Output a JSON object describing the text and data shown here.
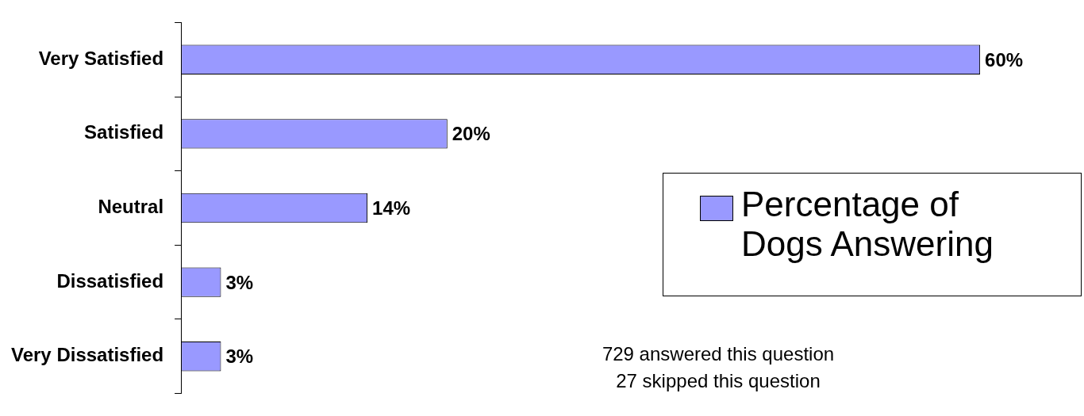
{
  "chart_data": {
    "type": "bar",
    "orientation": "horizontal",
    "categories": [
      "Very Satisfied",
      "Satisfied",
      "Neutral",
      "Dissatisfied",
      "Very Dissatisfied"
    ],
    "series": [
      {
        "name": "Percentage of Dogs Answering",
        "color": "#9999ff",
        "values": [
          60,
          20,
          14,
          3,
          3
        ],
        "value_labels": [
          "60%",
          "20%",
          "14%",
          "3%",
          "3%"
        ]
      }
    ],
    "legend": "right",
    "grid": false,
    "annotations": [
      "729 answered this question",
      "27 skipped this question"
    ]
  }
}
